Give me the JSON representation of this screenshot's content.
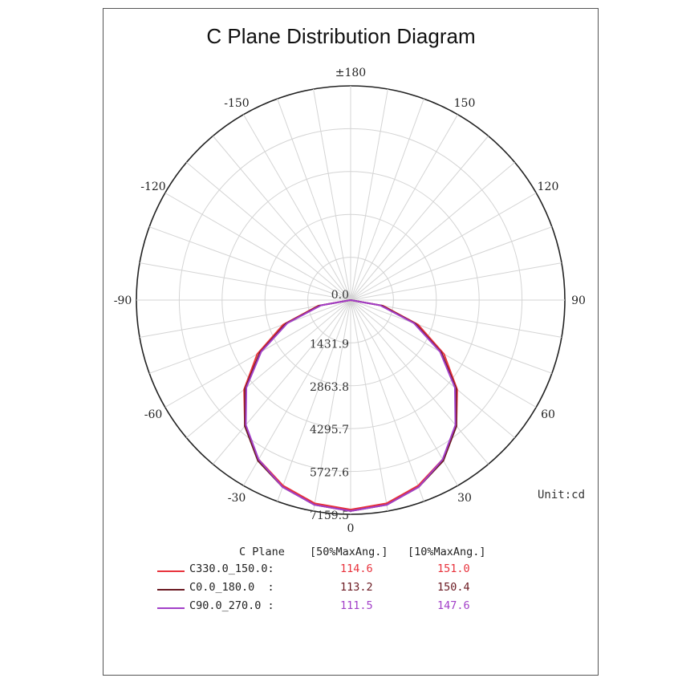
{
  "chart_data": {
    "type": "polar-line",
    "title": "C Plane Distribution Diagram",
    "unit_label": "Unit:cd",
    "angle_labels": [
      {
        "angle": 0,
        "text": "0"
      },
      {
        "angle": 30,
        "text": "30"
      },
      {
        "angle": -30,
        "text": "-30"
      },
      {
        "angle": 60,
        "text": "60"
      },
      {
        "angle": -60,
        "text": "-60"
      },
      {
        "angle": 90,
        "text": "90"
      },
      {
        "angle": -90,
        "text": "-90"
      },
      {
        "angle": 120,
        "text": "120"
      },
      {
        "angle": -120,
        "text": "-120"
      },
      {
        "angle": 150,
        "text": "150"
      },
      {
        "angle": -150,
        "text": "-150"
      },
      {
        "angle": 180,
        "text": "±180"
      }
    ],
    "radial_labels": [
      "0.0",
      "1431.9",
      "2863.8",
      "4295.7",
      "5727.6",
      "7159.5"
    ],
    "radial_ticks": [
      0,
      1431.9,
      2863.8,
      4295.7,
      5727.6,
      7159.5
    ],
    "radial_max": 7159.5,
    "legend_header": {
      "plane": "C Plane",
      "col1": "[50%MaxAng.]",
      "col2": "[10%MaxAng.]"
    },
    "series": [
      {
        "name": "C330.0_150.0:",
        "color": "#e8323c",
        "v50": "114.6",
        "v10": "151.0",
        "angles": [
          -90,
          -80,
          -70,
          -60,
          -50,
          -40,
          -30,
          -20,
          -10,
          0,
          10,
          20,
          30,
          40,
          50,
          60,
          70,
          80,
          90
        ],
        "values": [
          0,
          1100,
          2400,
          3600,
          4650,
          5500,
          6150,
          6600,
          6900,
          7000,
          6900,
          6600,
          6150,
          5500,
          4650,
          3600,
          2400,
          1100,
          0
        ]
      },
      {
        "name": "C0.0_180.0  :",
        "color": "#6b1a22",
        "v50": "113.2",
        "v10": "150.4",
        "angles": [
          -90,
          -80,
          -70,
          -60,
          -50,
          -40,
          -30,
          -20,
          -10,
          0,
          10,
          20,
          30,
          40,
          50,
          60,
          70,
          80,
          90
        ],
        "values": [
          0,
          1050,
          2300,
          3500,
          4600,
          5500,
          6200,
          6650,
          6950,
          7050,
          6950,
          6650,
          6200,
          5500,
          4600,
          3500,
          2300,
          1050,
          0
        ]
      },
      {
        "name": "C90.0_270.0 :",
        "color": "#a23fc8",
        "v50": "111.5",
        "v10": "147.6",
        "angles": [
          -90,
          -80,
          -70,
          -60,
          -50,
          -40,
          -30,
          -20,
          -10,
          0,
          10,
          20,
          30,
          40,
          50,
          60,
          70,
          80,
          90
        ],
        "values": [
          0,
          1000,
          2250,
          3450,
          4550,
          5450,
          6150,
          6650,
          6950,
          7050,
          6950,
          6650,
          6150,
          5450,
          4550,
          3450,
          2250,
          1000,
          0
        ]
      }
    ]
  }
}
